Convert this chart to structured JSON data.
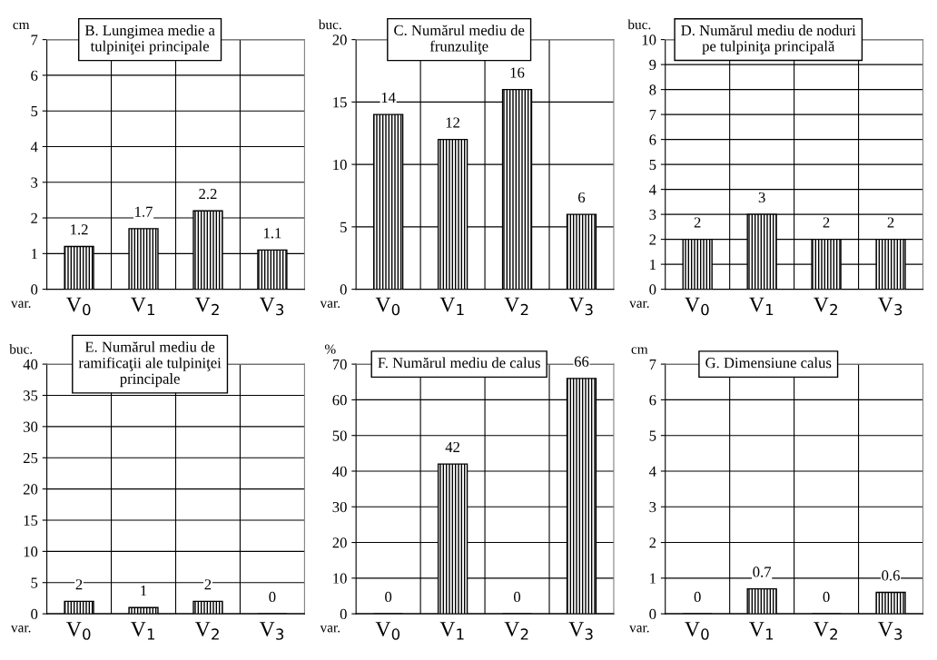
{
  "chart_data": [
    {
      "type": "bar",
      "title": "B. Lungimea medie a\ntulpiniţei principale",
      "ylabel": "cm",
      "annotations": [
        "var."
      ],
      "categories": [
        "V$_{0}$",
        "V$_{1}$",
        "V$_{2}$",
        "V$_{3}$"
      ],
      "values": [
        1.2,
        1.7,
        2.2,
        1.1
      ],
      "color": "#000000",
      "ylim": [
        0,
        7
      ],
      "yticks": [
        0,
        1,
        2,
        3,
        4,
        5,
        6,
        7
      ],
      "grid": true,
      "data_labels": true
    },
    {
      "type": "bar",
      "title": "C. Numărul mediu de\nfrunzuliţe",
      "ylabel": "buc.",
      "annotations": [
        "var."
      ],
      "categories": [
        "V$_{0}$",
        "V$_{1}$",
        "V$_{2}$",
        "V$_{3}$"
      ],
      "values": [
        14,
        12,
        16,
        6
      ],
      "color": "#000000",
      "ylim": [
        0,
        20
      ],
      "yticks": [
        0,
        5,
        10,
        15,
        20
      ],
      "grid": true,
      "data_labels": true
    },
    {
      "type": "bar",
      "title": "D. Numărul mediu de noduri\npe tulpiniţa principală",
      "ylabel": "buc.",
      "annotations": [
        "var."
      ],
      "categories": [
        "V$_{0}$",
        "V$_{1}$",
        "V$_{2}$",
        "V$_{3}$"
      ],
      "values": [
        2,
        3,
        2,
        2
      ],
      "color": "#000000",
      "ylim": [
        0,
        10
      ],
      "yticks": [
        0,
        1,
        2,
        3,
        4,
        5,
        6,
        7,
        8,
        9,
        10
      ],
      "grid": true,
      "data_labels": true
    },
    {
      "type": "bar",
      "title": "E. Numărul mediu de\nramificaţii ale tulpiniţei\nprincipale",
      "ylabel": "buc.",
      "annotations": [
        "var."
      ],
      "categories": [
        "V$_{0}$",
        "V$_{1}$",
        "V$_{2}$",
        "V$_{3}$"
      ],
      "values": [
        2,
        1,
        2,
        0
      ],
      "color": "#000000",
      "ylim": [
        0,
        40
      ],
      "yticks": [
        0,
        5,
        10,
        15,
        20,
        25,
        30,
        35,
        40
      ],
      "grid": true,
      "data_labels": true
    },
    {
      "type": "bar",
      "title": "F. Numărul mediu de calus",
      "ylabel": "%",
      "annotations": [
        "var."
      ],
      "categories": [
        "V$_{0}$",
        "V$_{1}$",
        "V$_{2}$",
        "V$_{3}$"
      ],
      "values": [
        0,
        42,
        0,
        66
      ],
      "color": "#000000",
      "ylim": [
        0,
        70
      ],
      "yticks": [
        0,
        10,
        20,
        30,
        40,
        50,
        60,
        70
      ],
      "grid": true,
      "data_labels": true
    },
    {
      "type": "bar",
      "title": "G. Dimensiune calus",
      "ylabel": "cm",
      "annotations": [
        "var."
      ],
      "categories": [
        "V$_{0}$",
        "V$_{1}$",
        "V$_{2}$",
        "V$_{3}$"
      ],
      "values": [
        0,
        0.7,
        0,
        0.6
      ],
      "color": "#000000",
      "ylim": [
        0,
        7
      ],
      "yticks": [
        0,
        1,
        2,
        3,
        4,
        5,
        6,
        7
      ],
      "grid": true,
      "data_labels": true
    }
  ]
}
